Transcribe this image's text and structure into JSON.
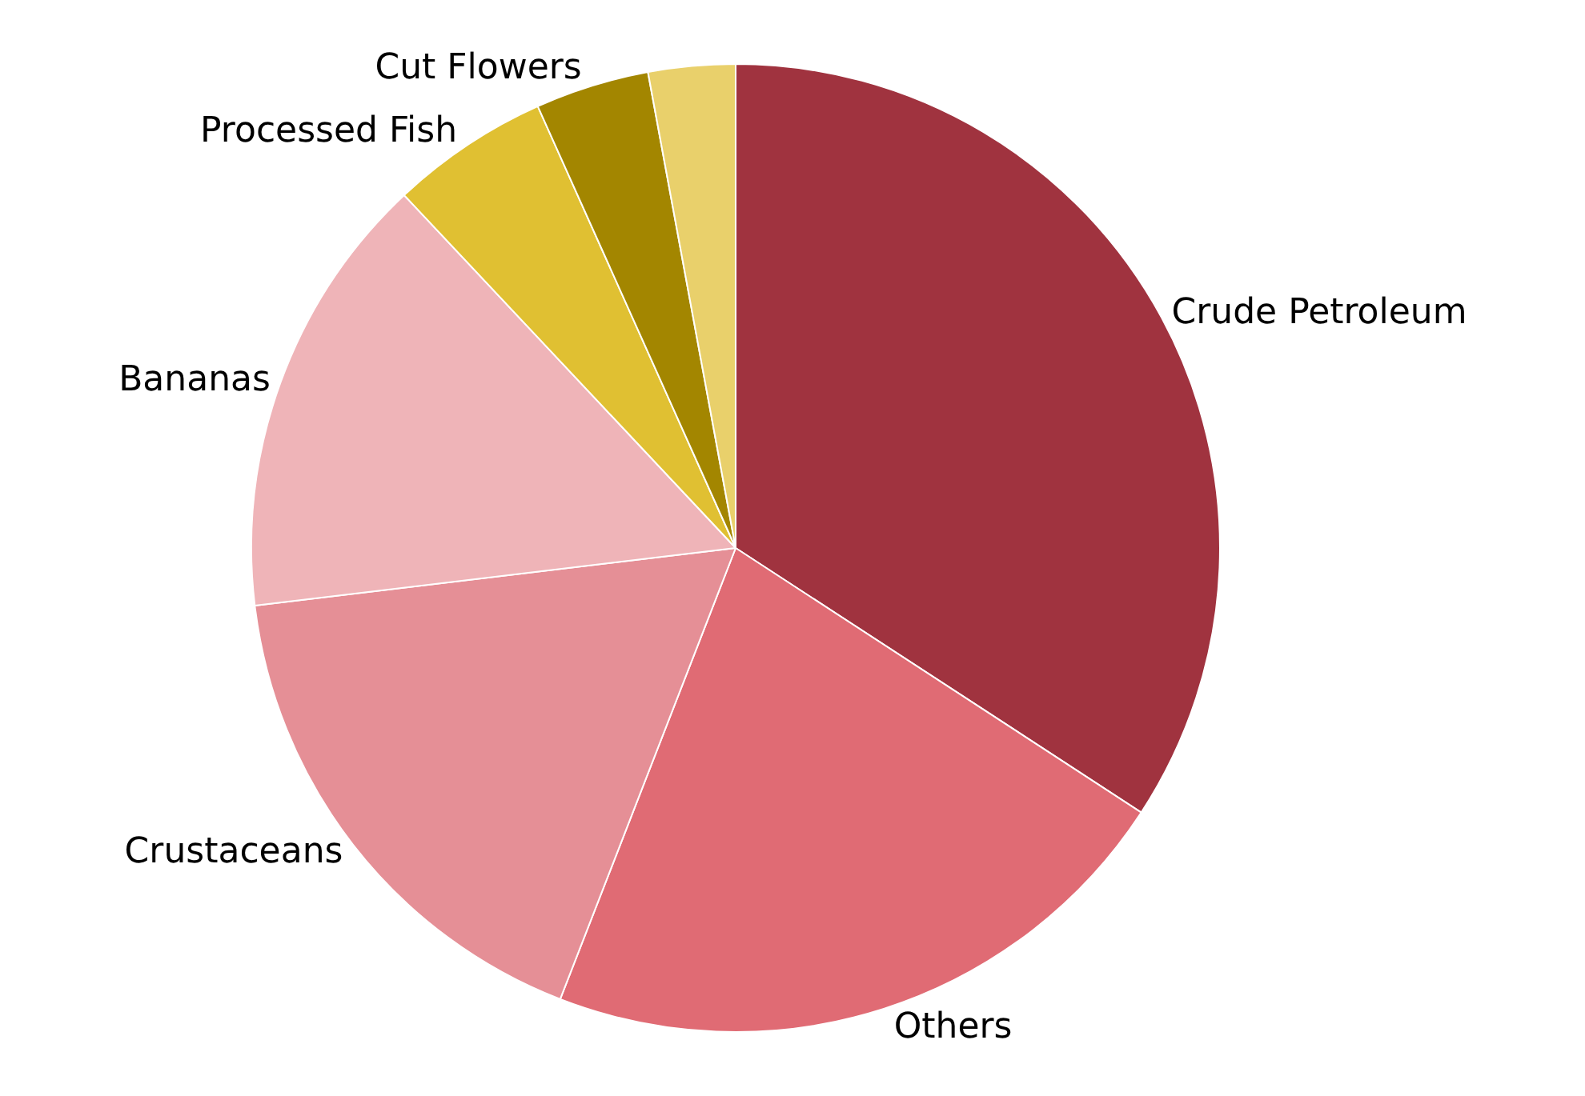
{
  "chart_data": {
    "type": "pie",
    "categories": [
      "Crude Petroleum",
      "Others",
      "Crustaceans",
      "Bananas",
      "Processed Fish",
      "Cut Flowers",
      null
    ],
    "values": [
      34.2,
      21.7,
      17.2,
      14.9,
      5.3,
      3.8,
      2.9
    ],
    "colors": [
      "#a0333f",
      "#e06b74",
      "#e58f96",
      "#efb4b8",
      "#e0c032",
      "#a38600",
      "#e9d06b"
    ],
    "legend": false
  }
}
